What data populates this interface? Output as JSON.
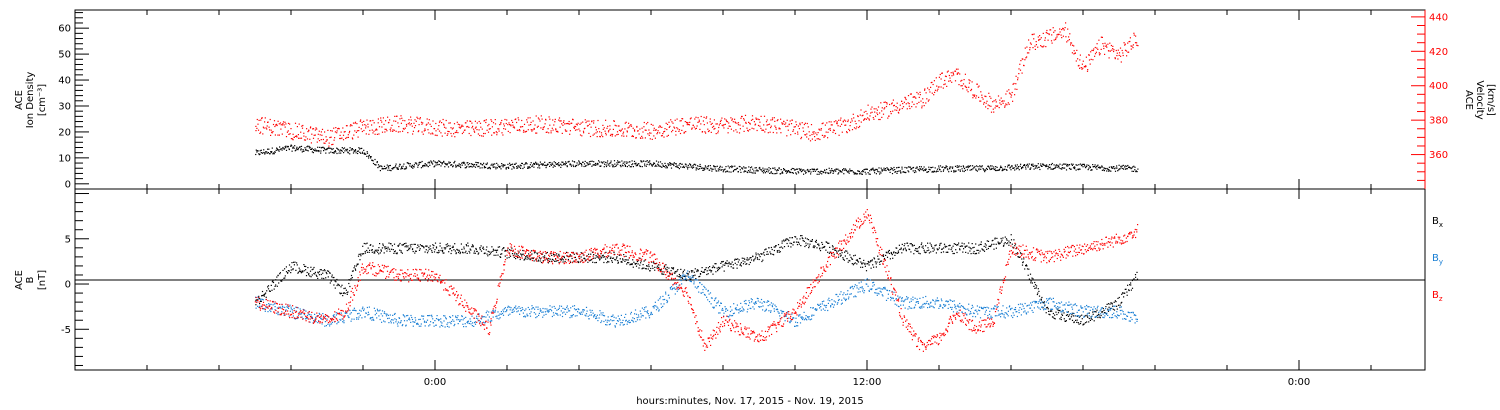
{
  "chart_data": [
    {
      "type": "scatter",
      "panel": "top",
      "ylabel_left": [
        "ACE",
        "Ion Density",
        "[cm⁻³]"
      ],
      "ylabel_right": [
        "ACE",
        "Velocity",
        "[km/s]"
      ],
      "ylim_left": [
        -2,
        67
      ],
      "ylim_right": [
        340,
        444
      ],
      "yticks_left": [
        "0",
        "10",
        "20",
        "30",
        "40",
        "50",
        "60"
      ],
      "yticks_right": [
        "360",
        "380",
        "400",
        "420",
        "440"
      ],
      "colors": {
        "density": "#000000",
        "velocity": "#ff0000"
      },
      "series": [
        {
          "axis": "left",
          "color": "#000000",
          "points_hours": [
            -5,
            -4,
            -3,
            -2,
            -1.5,
            -1,
            0,
            2,
            4,
            6,
            8,
            10,
            12,
            14,
            15,
            17,
            19.5
          ],
          "values": [
            12,
            14,
            13,
            13,
            6,
            7,
            8,
            7,
            8,
            8,
            6,
            5,
            5,
            6,
            6,
            7,
            6
          ]
        },
        {
          "axis": "right",
          "color": "#ff0000",
          "points_hours": [
            -5,
            -4,
            -3,
            -2,
            -1,
            0,
            1,
            2,
            3,
            4,
            5,
            6,
            7,
            8,
            9,
            10,
            10.5,
            11,
            11.5,
            12,
            12.5,
            13,
            13.5,
            14,
            14.5,
            15,
            15.5,
            16,
            16.5,
            17,
            17.5,
            18,
            18.5,
            19,
            19.5
          ],
          "values": [
            378,
            374,
            370,
            376,
            378,
            376,
            375,
            377,
            378,
            376,
            375,
            374,
            378,
            377,
            379,
            375,
            373,
            375,
            378,
            384,
            386,
            390,
            392,
            403,
            406,
            397,
            389,
            394,
            425,
            428,
            432,
            410,
            424,
            418,
            428
          ]
        }
      ]
    },
    {
      "type": "scatter",
      "panel": "bottom",
      "ylabel": [
        "ACE",
        "B",
        "[nT]"
      ],
      "ylim": [
        -9.5,
        10.5
      ],
      "yticks": [
        "5",
        "0",
        "-5"
      ],
      "legend": [
        "Bx",
        "By",
        "Bz"
      ],
      "colors": {
        "Bx": "#000000",
        "By": "#1a7fd4",
        "Bz": "#ff0000"
      },
      "series": [
        {
          "name": "Bx",
          "color": "#000000",
          "points_hours": [
            -5,
            -4,
            -3,
            -2.5,
            -2,
            -1,
            0,
            1,
            2,
            3,
            4,
            5,
            6,
            7,
            8,
            9,
            10,
            11,
            12,
            13,
            14,
            15,
            16,
            17,
            18,
            19,
            19.5
          ],
          "values": [
            -2,
            2,
            1,
            -1,
            4,
            4,
            4,
            4,
            3.5,
            3,
            3,
            3,
            2,
            1,
            2,
            3,
            5,
            4,
            2,
            4,
            4,
            4,
            5,
            -3,
            -4,
            -2,
            1
          ]
        },
        {
          "name": "By",
          "color": "#1a7fd4",
          "points_hours": [
            -5,
            -4,
            -3,
            -2,
            -1,
            0,
            1,
            2,
            3,
            4,
            5,
            6,
            7,
            8,
            9,
            10,
            11,
            12,
            13,
            14,
            15,
            16,
            17,
            18,
            19,
            19.5
          ],
          "values": [
            -2,
            -3,
            -4,
            -3,
            -4,
            -4,
            -4,
            -3,
            -3,
            -3,
            -4,
            -3,
            1,
            -3,
            -2,
            -4,
            -2,
            0,
            -2,
            -2,
            -3,
            -3,
            -2,
            -3,
            -3,
            -4
          ]
        },
        {
          "name": "Bz",
          "color": "#ff0000",
          "points_hours": [
            -5,
            -4,
            -3,
            -2.5,
            -2,
            -1,
            0,
            1,
            1.5,
            2,
            3,
            4,
            5,
            6,
            7,
            7.5,
            8,
            9,
            10,
            11,
            12,
            12.5,
            13,
            13.5,
            14,
            14.5,
            15,
            15.5,
            16,
            17,
            18,
            19,
            19.5
          ],
          "values": [
            -2,
            -3,
            -4,
            -3,
            2,
            1,
            1,
            -3,
            -5,
            4,
            3,
            3,
            4,
            3,
            -1,
            -7,
            -4,
            -6,
            -3,
            3,
            8,
            2,
            -4,
            -7,
            -6,
            -3,
            -5,
            -4,
            4,
            3,
            4,
            5,
            6
          ]
        }
      ]
    },
    {
      "type": "scatter",
      "panel": "x-axis",
      "xlim_hours": [
        -10,
        27.5
      ],
      "xticks": [
        {
          "hour": 0,
          "label": "0:00"
        },
        {
          "hour": 12,
          "label": "12:00"
        },
        {
          "hour": 24,
          "label": "0:00"
        }
      ],
      "minor_tick_step_hours": 2,
      "xlabel": "hours:minutes, Nov. 17, 2015 - Nov. 19, 2015"
    }
  ],
  "legend_labels": {
    "bx": {
      "main": "B",
      "sub": "x"
    },
    "by": {
      "main": "B",
      "sub": "y"
    },
    "bz": {
      "main": "B",
      "sub": "z"
    }
  }
}
